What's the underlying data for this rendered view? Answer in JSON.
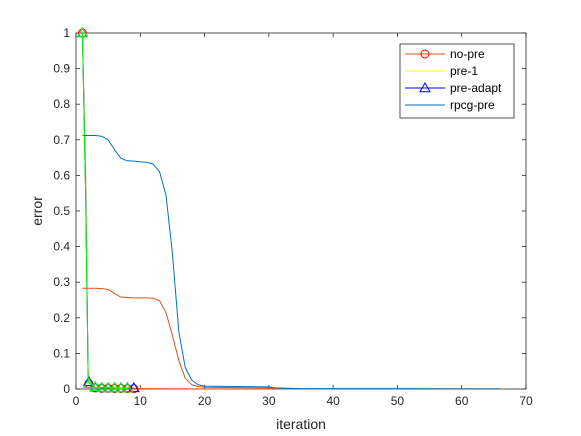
{
  "chart_data": {
    "type": "line",
    "title": "",
    "xlabel": "iteration",
    "ylabel": "error",
    "xlim": [
      0,
      70
    ],
    "ylim": [
      0,
      1
    ],
    "xticks": [
      "0",
      "10",
      "20",
      "30",
      "40",
      "50",
      "60",
      "70"
    ],
    "yticks": [
      "0",
      "0.1",
      "0.2",
      "0.3",
      "0.4",
      "0.5",
      "0.6",
      "0.7",
      "0.8",
      "0.9",
      "1"
    ],
    "grid": false,
    "legend_position": "top-right",
    "series": [
      {
        "name": "no-pre",
        "color": "#D95319",
        "marker": "circle",
        "marker_color": "#FF0000",
        "line": [
          [
            1,
            1
          ],
          [
            1.5,
            0.6
          ],
          [
            1.9,
            0.02
          ],
          [
            3,
            0.004
          ],
          [
            10,
            0.001
          ],
          [
            18,
            0.0005
          ],
          [
            30,
            0.0003
          ],
          [
            66,
            0.0001
          ]
        ],
        "markers": [
          [
            1,
            1
          ],
          [
            2,
            0.015
          ],
          [
            3,
            0.003
          ],
          [
            4,
            0.002
          ],
          [
            5,
            0.002
          ],
          [
            6,
            0.0015
          ],
          [
            7,
            0.0015
          ],
          [
            8,
            0.001
          ],
          [
            9,
            0.001
          ]
        ]
      },
      {
        "name": "pre-1",
        "color": "#FFFF00",
        "marker": "none",
        "line": [
          [
            1,
            1
          ],
          [
            1.5,
            0.55
          ],
          [
            1.9,
            0.02
          ],
          [
            3,
            0.004
          ],
          [
            9,
            0.001
          ]
        ],
        "markers": []
      },
      {
        "name": "pre-adapt",
        "color": "#0000FF",
        "marker": "triangle",
        "marker_color": "#0000FF",
        "line": [
          [
            1,
            1
          ],
          [
            1.5,
            0.55
          ],
          [
            1.9,
            0.02
          ],
          [
            3,
            0.004
          ],
          [
            9,
            0.002
          ]
        ],
        "markers": [
          [
            1,
            1
          ],
          [
            2,
            0.02
          ],
          [
            3,
            0.005
          ],
          [
            4,
            0.003
          ],
          [
            5,
            0.003
          ],
          [
            6,
            0.003
          ],
          [
            7,
            0.003
          ],
          [
            8,
            0.003
          ],
          [
            9,
            0.003
          ]
        ]
      },
      {
        "name": "",
        "color": "#00FF00",
        "marker": "triangle",
        "marker_color": "#00FF00",
        "line": [
          [
            1,
            1
          ],
          [
            1.5,
            0.55
          ],
          [
            1.9,
            0.02
          ],
          [
            3,
            0.004
          ],
          [
            8,
            0.002
          ]
        ],
        "markers": [
          [
            1,
            1
          ],
          [
            2,
            0.015
          ],
          [
            3,
            0.006
          ],
          [
            4,
            0.004
          ],
          [
            5,
            0.003
          ],
          [
            6,
            0.003
          ],
          [
            7,
            0.003
          ],
          [
            8,
            0.002
          ]
        ]
      },
      {
        "name": "",
        "color": "#D95319",
        "marker": "none",
        "line": [
          [
            1,
            0.283
          ],
          [
            2,
            0.283
          ],
          [
            3,
            0.283
          ],
          [
            4,
            0.282
          ],
          [
            5,
            0.28
          ],
          [
            6,
            0.268
          ],
          [
            7,
            0.258
          ],
          [
            8,
            0.257
          ],
          [
            9,
            0.256
          ],
          [
            10,
            0.256
          ],
          [
            11,
            0.256
          ],
          [
            12,
            0.255
          ],
          [
            13,
            0.248
          ],
          [
            14,
            0.215
          ],
          [
            15,
            0.15
          ],
          [
            16,
            0.08
          ],
          [
            17,
            0.03
          ],
          [
            18,
            0.012
          ],
          [
            19,
            0.007
          ],
          [
            20,
            0.005
          ],
          [
            25,
            0.004
          ],
          [
            30,
            0.003
          ],
          [
            32,
            0.001
          ],
          [
            40,
            0.0008
          ],
          [
            66,
            0.0005
          ]
        ],
        "markers": []
      },
      {
        "name": "rpcg-pre",
        "color": "#0072BD",
        "marker": "none",
        "line": [
          [
            1,
            0.712
          ],
          [
            2,
            0.712
          ],
          [
            3,
            0.712
          ],
          [
            4,
            0.71
          ],
          [
            5,
            0.7
          ],
          [
            6,
            0.672
          ],
          [
            7,
            0.648
          ],
          [
            8,
            0.641
          ],
          [
            9,
            0.64
          ],
          [
            10,
            0.638
          ],
          [
            11,
            0.637
          ],
          [
            12,
            0.632
          ],
          [
            13,
            0.61
          ],
          [
            14,
            0.545
          ],
          [
            15,
            0.38
          ],
          [
            16,
            0.16
          ],
          [
            17,
            0.06
          ],
          [
            18,
            0.025
          ],
          [
            19,
            0.012
          ],
          [
            20,
            0.008
          ],
          [
            25,
            0.007
          ],
          [
            30,
            0.006
          ],
          [
            31,
            0.003
          ],
          [
            35,
            0.001
          ],
          [
            40,
            0.0008
          ],
          [
            66,
            0.0005
          ]
        ],
        "markers": []
      }
    ]
  }
}
